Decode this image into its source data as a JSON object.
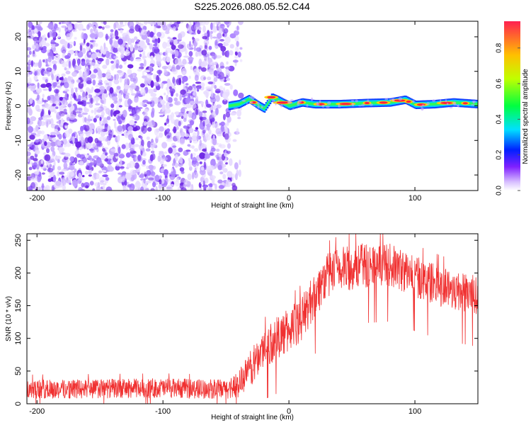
{
  "figure": {
    "title": "S225.2026.080.05.52.C44"
  },
  "chart_data": [
    {
      "type": "heatmap",
      "panel": "spectrogram",
      "xlabel": "Height of straight line (km)",
      "ylabel": "Frequency (Hz)",
      "xlim": [
        -208,
        150
      ],
      "ylim": [
        -24.5,
        24.5
      ],
      "xticks": [
        -200,
        -100,
        0,
        100
      ],
      "yticks": [
        -20,
        -10,
        0,
        10,
        20
      ],
      "noise_region_x": [
        -208,
        -48
      ],
      "signal_region_x": [
        -48,
        150
      ],
      "signal_center_freq_hz": 0.5,
      "signal_frequency_trace": [
        {
          "x": -48,
          "f": 0.0
        },
        {
          "x": -40,
          "f": 0.5
        },
        {
          "x": -32,
          "f": 2.0
        },
        {
          "x": -26,
          "f": 0.5
        },
        {
          "x": -20,
          "f": -0.8
        },
        {
          "x": -14,
          "f": 2.5
        },
        {
          "x": -8,
          "f": 1.5
        },
        {
          "x": 0,
          "f": 0.0
        },
        {
          "x": 10,
          "f": 1.0
        },
        {
          "x": 20,
          "f": 0.5
        },
        {
          "x": 40,
          "f": 0.5
        },
        {
          "x": 60,
          "f": 0.8
        },
        {
          "x": 80,
          "f": 1.0
        },
        {
          "x": 92,
          "f": 1.8
        },
        {
          "x": 100,
          "f": 0.3
        },
        {
          "x": 115,
          "f": 0.5
        },
        {
          "x": 130,
          "f": 1.0
        },
        {
          "x": 150,
          "f": 0.5
        }
      ],
      "colorbar": {
        "label": "Normalized spectral amplitude",
        "range": [
          0,
          0.95
        ],
        "ticks": [
          0.0,
          0.2,
          0.4,
          0.6,
          0.8
        ],
        "colors": [
          "#ffffff",
          "#8020ff",
          "#0020ff",
          "#00e0ff",
          "#00ff40",
          "#c0ff00",
          "#ffc000",
          "#ff2050"
        ]
      }
    },
    {
      "type": "line",
      "panel": "snr",
      "xlabel": "Height of straight line (km)",
      "ylabel": "SNR (10 * v/v)",
      "xlim": [
        -208,
        150
      ],
      "ylim": [
        0,
        260
      ],
      "xticks": [
        -200,
        -100,
        0,
        100
      ],
      "yticks": [
        0,
        50,
        100,
        150,
        200,
        250
      ],
      "line_color": "#f03030",
      "baseline_points": [
        {
          "x": -208,
          "y": 22
        },
        {
          "x": -150,
          "y": 23
        },
        {
          "x": -100,
          "y": 24
        },
        {
          "x": -50,
          "y": 22
        },
        {
          "x": -40,
          "y": 30
        },
        {
          "x": -30,
          "y": 55
        },
        {
          "x": -20,
          "y": 85
        },
        {
          "x": -10,
          "y": 100
        },
        {
          "x": 0,
          "y": 112
        },
        {
          "x": 10,
          "y": 130
        },
        {
          "x": 20,
          "y": 165
        },
        {
          "x": 30,
          "y": 195
        },
        {
          "x": 40,
          "y": 205
        },
        {
          "x": 60,
          "y": 212
        },
        {
          "x": 80,
          "y": 212
        },
        {
          "x": 100,
          "y": 195
        },
        {
          "x": 120,
          "y": 180
        },
        {
          "x": 140,
          "y": 170
        },
        {
          "x": 150,
          "y": 165
        }
      ],
      "noise_amplitude_points": [
        {
          "x": -208,
          "a": 15
        },
        {
          "x": -50,
          "a": 15
        },
        {
          "x": -30,
          "a": 28
        },
        {
          "x": 0,
          "a": 35
        },
        {
          "x": 40,
          "a": 35
        },
        {
          "x": 150,
          "a": 30
        }
      ]
    }
  ]
}
